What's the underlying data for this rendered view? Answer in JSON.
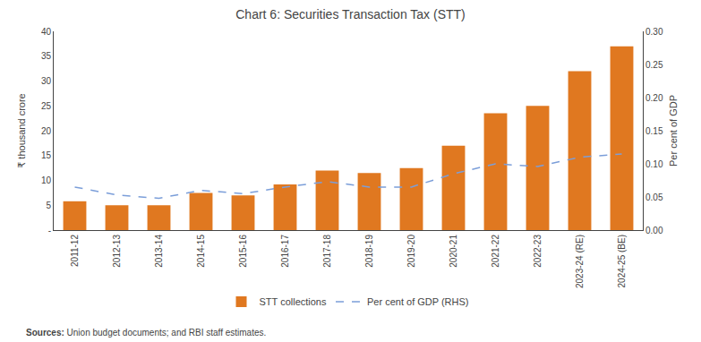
{
  "chart_data": {
    "type": "bar",
    "title": "Chart 6: Securities Transaction Tax (STT)",
    "categories": [
      "2011-12",
      "2012-13",
      "2013-14",
      "2014-15",
      "2015-16",
      "2016-17",
      "2017-18",
      "2018-19",
      "2019-20",
      "2020-21",
      "2021-22",
      "2022-23",
      "2023-24 (RE)",
      "2024-25 (BE)"
    ],
    "series": [
      {
        "name": "STT collections",
        "type": "bar",
        "color": "#E07820",
        "values": [
          5.8,
          5.0,
          5.0,
          7.5,
          7.0,
          9.2,
          12.0,
          11.5,
          12.5,
          17.0,
          23.5,
          25.0,
          32.0,
          37.0
        ]
      },
      {
        "name": "Per cent of GDP (RHS)",
        "type": "line",
        "axis": "y2",
        "color": "#7B9ED9",
        "line_style": "dashed",
        "values": [
          0.065,
          0.053,
          0.048,
          0.06,
          0.055,
          0.065,
          0.073,
          0.065,
          0.065,
          0.085,
          0.1,
          0.096,
          0.11,
          0.115
        ]
      }
    ],
    "ylabel": "₹ thousand crore",
    "y2label": "Per cent of GDP",
    "ylim": [
      0,
      40
    ],
    "yticks": [
      {
        "value": 0,
        "label": "-"
      },
      5,
      10,
      15,
      20,
      25,
      30,
      35,
      40
    ],
    "y2lim": [
      0.0,
      0.3
    ],
    "y2ticks": [
      {
        "value": 0,
        "label": "0.00"
      },
      0.05,
      {
        "value": 0.1,
        "label": "0.10"
      },
      0.15,
      {
        "value": 0.2,
        "label": "0.20"
      },
      0.25,
      {
        "value": 0.3,
        "label": "0.30"
      }
    ],
    "grid": false,
    "legend": "bottom",
    "annotations": [
      "Sources:",
      " Union budget documents; and RBI staff estimates."
    ]
  }
}
